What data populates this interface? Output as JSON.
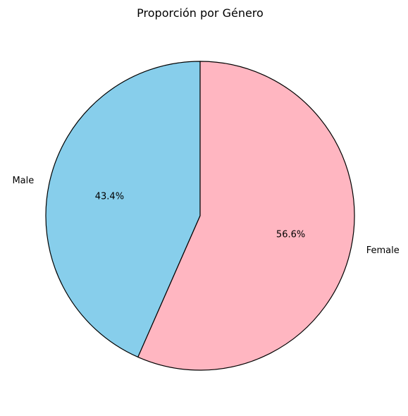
{
  "chart_data": {
    "type": "pie",
    "title": "Proporción por Género",
    "slices": [
      {
        "label": "Male",
        "value": 43.4,
        "pct_label": "43.4%",
        "color": "#87ceeb"
      },
      {
        "label": "Female",
        "value": 56.6,
        "pct_label": "56.6%",
        "color": "#ffb6c1"
      }
    ],
    "start_angle_deg": 90,
    "direction": "counterclockwise",
    "edge_color": "#000000"
  }
}
